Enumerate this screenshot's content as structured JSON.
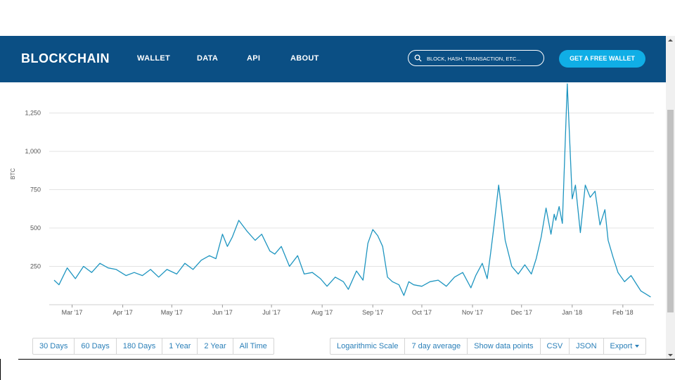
{
  "navbar": {
    "logo": "BLOCKCHAIN",
    "links": [
      "WALLET",
      "DATA",
      "API",
      "ABOUT"
    ],
    "search_placeholder": "BLOCK, HASH, TRANSACTION, ETC...",
    "cta": "GET A FREE WALLET",
    "background": "#0b4f84",
    "cta_color": "#10aee6"
  },
  "range_buttons": [
    "30 Days",
    "60 Days",
    "180 Days",
    "1 Year",
    "2 Year",
    "All Time"
  ],
  "option_buttons": [
    "Logarithmic Scale",
    "7 day average",
    "Show data points",
    "CSV",
    "JSON",
    "Export"
  ],
  "chart_data": {
    "type": "line",
    "ylabel": "BTC",
    "xlabel": "",
    "ylim": [
      0,
      1450
    ],
    "y_ticks": [
      250,
      500,
      750,
      1000,
      1250
    ],
    "y_tick_labels": [
      "250",
      "500",
      "750",
      "1,000",
      "1,250"
    ],
    "x_tick_labels": [
      "Mar '17",
      "Apr '17",
      "May '17",
      "Jun '17",
      "Jul '17",
      "Aug '17",
      "Sep '17",
      "Oct '17",
      "Nov '17",
      "Dec '17",
      "Jan '18",
      "Feb '18"
    ],
    "x_tick_dates": [
      "2017-03-01",
      "2017-04-01",
      "2017-05-01",
      "2017-06-01",
      "2017-07-01",
      "2017-08-01",
      "2017-09-01",
      "2017-10-01",
      "2017-11-01",
      "2017-12-01",
      "2018-01-01",
      "2018-02-01"
    ],
    "x_range": [
      "2017-02-15",
      "2018-02-20"
    ],
    "grid": true,
    "line_color": "#1e95c0",
    "series": [
      {
        "x": [
          "2017-02-18",
          "2017-02-21",
          "2017-02-26",
          "2017-03-03",
          "2017-03-08",
          "2017-03-13",
          "2017-03-18",
          "2017-03-23",
          "2017-03-28",
          "2017-04-03",
          "2017-04-08",
          "2017-04-13",
          "2017-04-18",
          "2017-04-23",
          "2017-04-28",
          "2017-05-04",
          "2017-05-09",
          "2017-05-14",
          "2017-05-19",
          "2017-05-24",
          "2017-05-28",
          "2017-06-01",
          "2017-06-04",
          "2017-06-07",
          "2017-06-11",
          "2017-06-16",
          "2017-06-21",
          "2017-06-25",
          "2017-06-30",
          "2017-07-03",
          "2017-07-07",
          "2017-07-12",
          "2017-07-17",
          "2017-07-21",
          "2017-07-26",
          "2017-07-31",
          "2017-08-04",
          "2017-08-09",
          "2017-08-14",
          "2017-08-17",
          "2017-08-22",
          "2017-08-26",
          "2017-08-29",
          "2017-09-01",
          "2017-09-04",
          "2017-09-07",
          "2017-09-10",
          "2017-09-13",
          "2017-09-17",
          "2017-09-20",
          "2017-09-23",
          "2017-09-26",
          "2017-10-01",
          "2017-10-06",
          "2017-10-11",
          "2017-10-16",
          "2017-10-21",
          "2017-10-26",
          "2017-10-31",
          "2017-11-03",
          "2017-11-07",
          "2017-11-10",
          "2017-11-12",
          "2017-11-14",
          "2017-11-17",
          "2017-11-21",
          "2017-11-25",
          "2017-11-29",
          "2017-12-03",
          "2017-12-07",
          "2017-12-10",
          "2017-12-13",
          "2017-12-16",
          "2017-12-19",
          "2017-12-21",
          "2017-12-22",
          "2017-12-24",
          "2017-12-26",
          "2017-12-29",
          "2018-01-01",
          "2018-01-03",
          "2018-01-06",
          "2018-01-09",
          "2018-01-12",
          "2018-01-15",
          "2018-01-18",
          "2018-01-21",
          "2018-01-23",
          "2018-01-26",
          "2018-01-29",
          "2018-02-02",
          "2018-02-06",
          "2018-02-09",
          "2018-02-12",
          "2018-02-15",
          "2018-02-18"
        ],
        "y": [
          160,
          130,
          240,
          170,
          250,
          210,
          270,
          240,
          230,
          190,
          210,
          190,
          230,
          180,
          230,
          200,
          270,
          230,
          290,
          320,
          300,
          460,
          380,
          440,
          550,
          480,
          420,
          460,
          350,
          330,
          380,
          250,
          320,
          200,
          210,
          170,
          120,
          180,
          150,
          100,
          220,
          160,
          400,
          490,
          450,
          380,
          180,
          150,
          130,
          60,
          150,
          130,
          120,
          150,
          160,
          120,
          180,
          210,
          110,
          190,
          270,
          170,
          330,
          500,
          780,
          420,
          250,
          200,
          260,
          200,
          300,
          440,
          630,
          460,
          590,
          550,
          640,
          530,
          1440,
          690,
          780,
          470,
          780,
          700,
          740,
          520,
          620,
          420,
          310,
          210,
          150,
          190,
          140,
          90,
          70,
          50
        ]
      }
    ]
  }
}
